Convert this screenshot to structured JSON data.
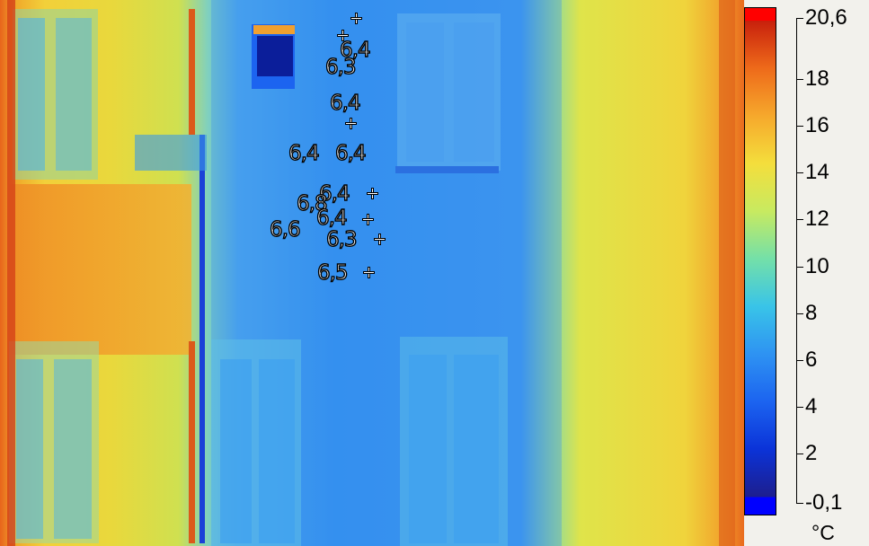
{
  "image": {
    "kind": "thermal-image",
    "palette": [
      "#1d1e8e",
      "#0b33d8",
      "#1c64f0",
      "#2e93f2",
      "#39c4e8",
      "#74e0a8",
      "#c8ea60",
      "#f4de3c",
      "#f6a82c",
      "#ee6a1a",
      "#c8200c"
    ]
  },
  "measurements": [
    {
      "value": "6,4"
    },
    {
      "value": "6,3"
    },
    {
      "value": "6,4"
    },
    {
      "value": "6,4"
    },
    {
      "value": "6,4"
    },
    {
      "value": "6,4"
    },
    {
      "value": "6,6"
    },
    {
      "value": "6,8"
    },
    {
      "value": "6,4"
    },
    {
      "value": "6,3"
    },
    {
      "value": "6,5"
    }
  ],
  "scale": {
    "max_label": "20,6",
    "min_label": "-0,1",
    "unit": "°C",
    "ticks": [
      "18",
      "16",
      "14",
      "12",
      "10",
      "8",
      "6",
      "4",
      "2"
    ],
    "colors": {
      "top_cap": "#ff0000",
      "bottom_cap": "#0000ff"
    }
  }
}
